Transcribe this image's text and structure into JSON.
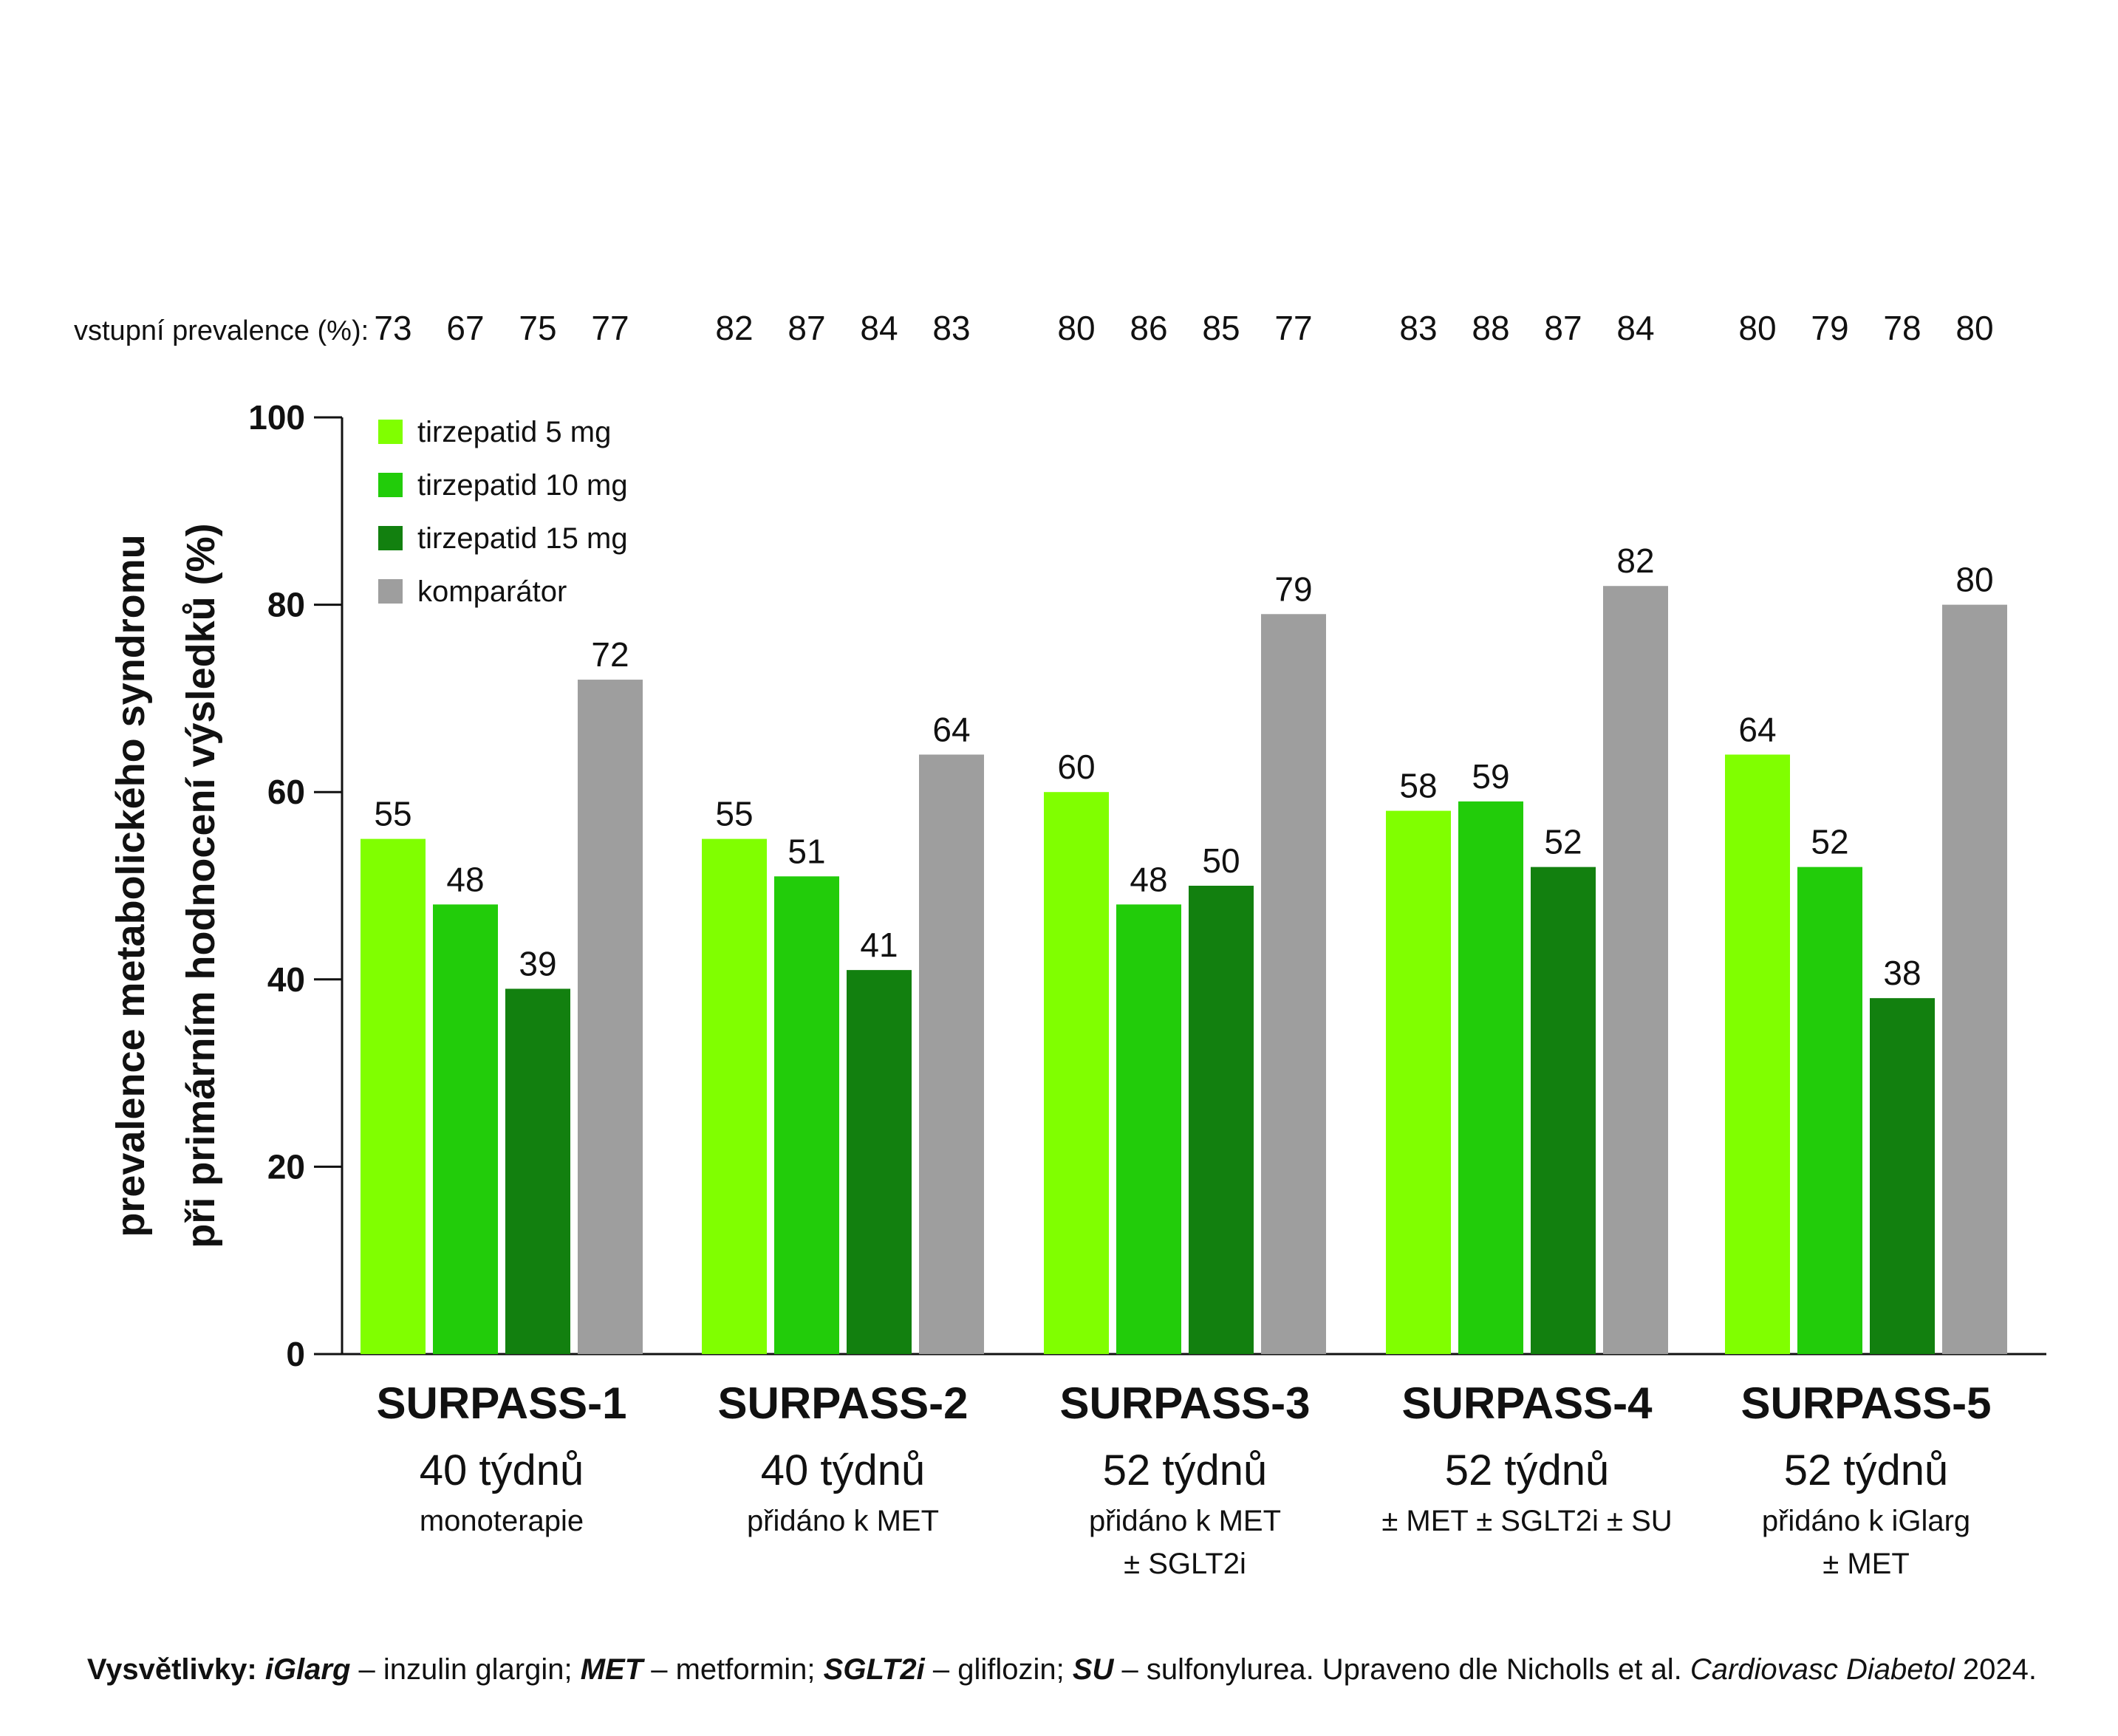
{
  "chart_data": {
    "type": "bar",
    "title": "",
    "ylabel_lines": [
      "prevalence metabolického syndromu",
      "při primárním hodnocení výsledků (%)"
    ],
    "ylim": [
      0,
      100
    ],
    "yticks": [
      0,
      20,
      40,
      60,
      80,
      100
    ],
    "grid": false,
    "legend_position": "top-left",
    "baseline_label": "vstupní prevalence (%):",
    "colors": [
      "#80ff00",
      "#22cc0a",
      "#12800f",
      "#9e9e9e"
    ],
    "series": [
      {
        "name": "tirzepatid 5 mg",
        "values": [
          55,
          55,
          60,
          58,
          64
        ],
        "baseline": [
          73,
          82,
          80,
          83,
          80
        ]
      },
      {
        "name": "tirzepatid 10 mg",
        "values": [
          48,
          51,
          48,
          59,
          52
        ],
        "baseline": [
          67,
          87,
          86,
          88,
          79
        ]
      },
      {
        "name": "tirzepatid 15 mg",
        "values": [
          39,
          41,
          50,
          52,
          38
        ],
        "baseline": [
          75,
          84,
          85,
          87,
          78
        ]
      },
      {
        "name": "komparátor",
        "values": [
          72,
          64,
          79,
          82,
          80
        ],
        "baseline": [
          77,
          83,
          77,
          84,
          80
        ]
      }
    ],
    "groups": [
      {
        "name": "SURPASS-1",
        "duration": "40 týdnů",
        "notes": [
          "monoterapie"
        ]
      },
      {
        "name": "SURPASS-2",
        "duration": "40 týdnů",
        "notes": [
          "přidáno k MET"
        ]
      },
      {
        "name": "SURPASS-3",
        "duration": "52 týdnů",
        "notes": [
          "přidáno k MET",
          "± SGLT2i"
        ]
      },
      {
        "name": "SURPASS-4",
        "duration": "52 týdnů",
        "notes": [
          "± MET ± SGLT2i ± SU"
        ]
      },
      {
        "name": "SURPASS-5",
        "duration": "52 týdnů",
        "notes": [
          "přidáno k iGlarg",
          "± MET"
        ]
      }
    ]
  },
  "footnote": {
    "label": "Vysvětlivky:",
    "t1_abbr": "iGlarg",
    "t1_text": " – inzulin glargin; ",
    "t2_abbr": "MET",
    "t2_text": " – metformin; ",
    "t3_abbr": "SGLT2i",
    "t3_text": " – gliflozin; ",
    "t4_abbr": "SU",
    "t4_text": " – sulfonylurea. Upraveno dle Nicholls et al. ",
    "journal": "Cardiovasc Diabetol",
    "year": " 2024."
  }
}
